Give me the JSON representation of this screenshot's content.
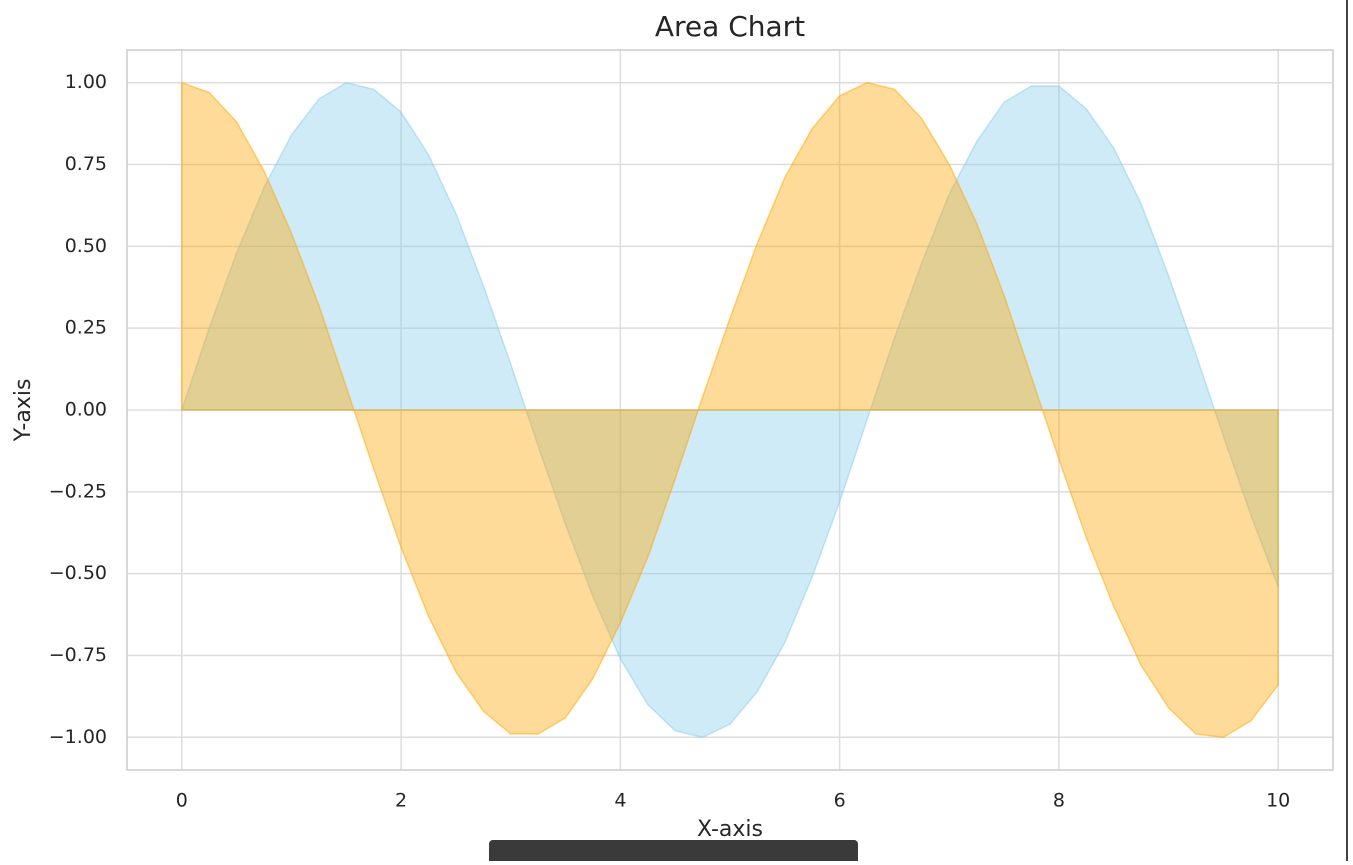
{
  "chart_data": {
    "type": "area",
    "title": "Area Chart",
    "xlabel": "X-axis",
    "ylabel": "Y-axis",
    "x": [
      0,
      0.25,
      0.5,
      0.75,
      1,
      1.25,
      1.5,
      1.75,
      2,
      2.25,
      2.5,
      2.75,
      3,
      3.25,
      3.5,
      3.75,
      4,
      4.25,
      4.5,
      4.75,
      5,
      5.25,
      5.5,
      5.75,
      6,
      6.25,
      6.5,
      6.75,
      7,
      7.25,
      7.5,
      7.75,
      8,
      8.25,
      8.5,
      8.75,
      9,
      9.25,
      9.5,
      9.75,
      10
    ],
    "series": [
      {
        "color": "#87ceeb",
        "values": [
          0,
          0.25,
          0.48,
          0.68,
          0.84,
          0.95,
          1.0,
          0.98,
          0.91,
          0.78,
          0.6,
          0.38,
          0.14,
          -0.11,
          -0.35,
          -0.57,
          -0.76,
          -0.9,
          -0.98,
          -1.0,
          -0.96,
          -0.86,
          -0.71,
          -0.51,
          -0.28,
          -0.03,
          0.22,
          0.45,
          0.66,
          0.82,
          0.94,
          0.99,
          0.99,
          0.92,
          0.8,
          0.63,
          0.41,
          0.17,
          -0.08,
          -0.32,
          -0.54
        ]
      },
      {
        "color": "#ffa500",
        "values": [
          1.0,
          0.97,
          0.88,
          0.73,
          0.54,
          0.32,
          0.07,
          -0.18,
          -0.42,
          -0.63,
          -0.8,
          -0.92,
          -0.99,
          -0.99,
          -0.94,
          -0.82,
          -0.65,
          -0.45,
          -0.21,
          0.04,
          0.28,
          0.51,
          0.71,
          0.86,
          0.96,
          1.0,
          0.98,
          0.89,
          0.75,
          0.57,
          0.35,
          0.1,
          -0.15,
          -0.39,
          -0.6,
          -0.78,
          -0.91,
          -0.99,
          -1.0,
          -0.95,
          -0.84
        ]
      }
    ],
    "xlim": [
      -0.5,
      10.5
    ],
    "ylim": [
      -1.1,
      1.1
    ],
    "xticks": [
      0,
      2,
      4,
      6,
      8,
      10
    ],
    "yticks": [
      {
        "value": -1,
        "label": "−1.00"
      },
      {
        "value": -0.75,
        "label": "−0.75"
      },
      {
        "value": -0.5,
        "label": "−0.50"
      },
      {
        "value": -0.25,
        "label": "−0.25"
      },
      {
        "value": 0,
        "label": "0.00"
      },
      {
        "value": 0.25,
        "label": "0.25"
      },
      {
        "value": 0.5,
        "label": "0.50"
      },
      {
        "value": 0.75,
        "label": "0.75"
      },
      {
        "value": 1,
        "label": "1.00"
      }
    ],
    "grid": true
  }
}
